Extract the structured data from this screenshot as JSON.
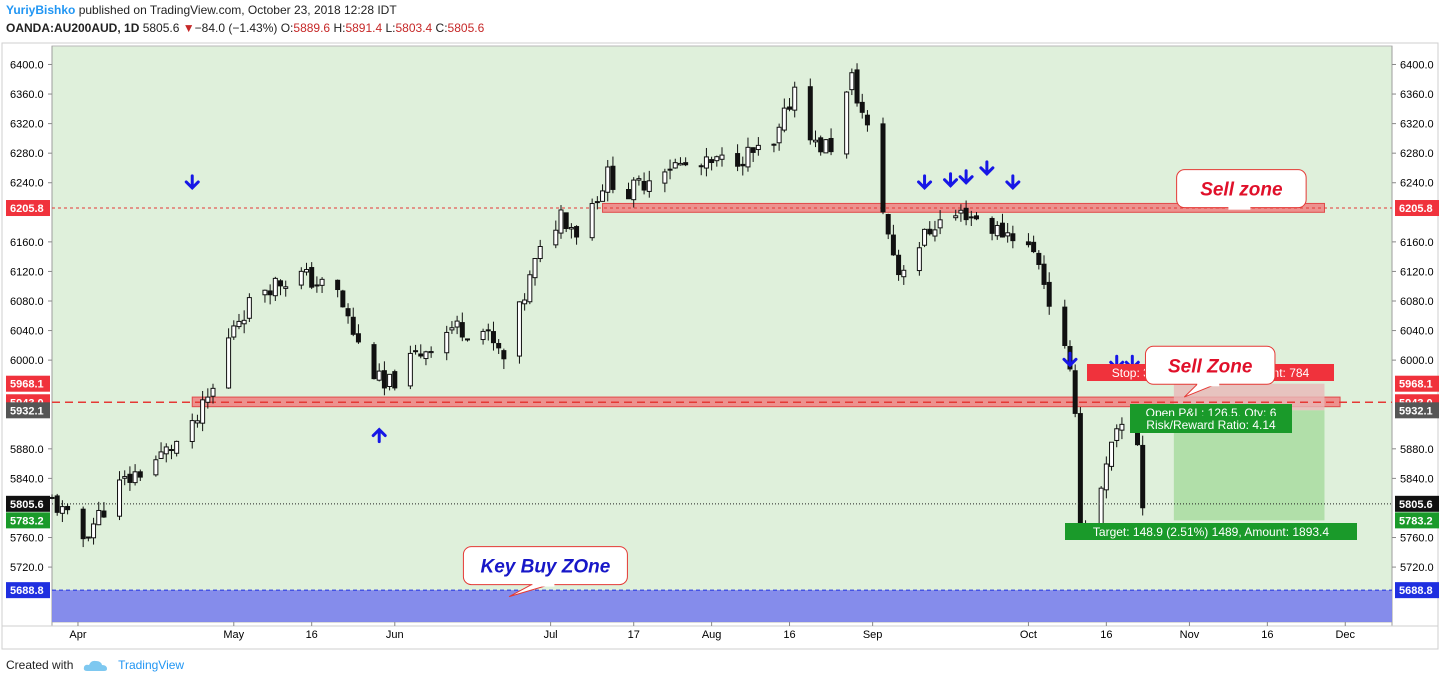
{
  "header": {
    "author": "YuriyBishko",
    "published": "published on TradingView.com, October 23, 2018 12:28 IDT",
    "symbol": "OANDA:AU200AUD, 1D",
    "last": "5805.6",
    "change": "−84.0 (−1.43%)",
    "o_label": "O:",
    "o_value": "5889.6",
    "h_label": "H:",
    "h_value": "5891.4",
    "l_label": "L:",
    "l_value": "5803.4",
    "c_label": "C:",
    "c_value": "5805.6"
  },
  "footer": {
    "created_with": "Created with",
    "brand": "TradingView"
  },
  "colors": {
    "plot_bg": "#dff0db",
    "sell_zone": "#f08080",
    "buy_zone": "#7f86ec",
    "red_label": "#f0323c",
    "green_label": "#1a9a2a",
    "dark_label": "#555555",
    "arrow": "#1717e6",
    "target_box": "#a9dca0"
  },
  "chart_data": {
    "type": "candlestick",
    "y_axis": {
      "range": [
        5645.7,
        6425
      ],
      "ticks": [
        6400,
        6360,
        6320,
        6280,
        6240,
        6160,
        6120,
        6080,
        6040,
        6000,
        5880,
        5840,
        5760,
        5720
      ],
      "tick_labels": [
        "6400.0",
        "6360.0",
        "6320.0",
        "6280.0",
        "6240.0",
        "6160.0",
        "6120.0",
        "6080.0",
        "6040.0",
        "6000.0",
        "5880.0",
        "5840.0",
        "5760.0",
        "5720.0"
      ]
    },
    "x_axis": {
      "start": "2018-03-27",
      "end": "2018-12-10",
      "ticks": [
        {
          "date": "2018-04-01",
          "label": "Apr"
        },
        {
          "date": "2018-05-01",
          "label": "May"
        },
        {
          "date": "2018-05-16",
          "label": "16"
        },
        {
          "date": "2018-06-01",
          "label": "Jun"
        },
        {
          "date": "2018-07-01",
          "label": "Jul"
        },
        {
          "date": "2018-07-17",
          "label": "17"
        },
        {
          "date": "2018-08-01",
          "label": "Aug"
        },
        {
          "date": "2018-08-16",
          "label": "16"
        },
        {
          "date": "2018-09-01",
          "label": "Sep"
        },
        {
          "date": "2018-10-01",
          "label": "Oct"
        },
        {
          "date": "2018-10-16",
          "label": "16"
        },
        {
          "date": "2018-11-01",
          "label": "Nov"
        },
        {
          "date": "2018-11-16",
          "label": "16"
        },
        {
          "date": "2018-12-01",
          "label": "Dec"
        }
      ]
    },
    "price_labels": [
      {
        "value": 6205.8,
        "text": "6205.8",
        "kind": "red"
      },
      {
        "value": 5968.1,
        "text": "5968.1",
        "kind": "red"
      },
      {
        "value": 5943.0,
        "text": "5943.0",
        "kind": "red"
      },
      {
        "value": 5932.1,
        "text": "5932.1",
        "kind": "dark"
      },
      {
        "value": 5805.6,
        "text": "5805.6",
        "kind": "black"
      },
      {
        "value": 5783.2,
        "text": "5783.2",
        "kind": "green"
      },
      {
        "value": 5688.8,
        "text": "5688.8",
        "kind": "blue"
      }
    ],
    "lines": [
      {
        "value": 6205.8,
        "style": "dotted-red"
      },
      {
        "value": 5943.0,
        "style": "dashed-red"
      },
      {
        "value": 5805.6,
        "style": "dotted-black"
      },
      {
        "value": 5688.8,
        "style": "dashed-blue"
      }
    ],
    "zones": [
      {
        "name": "sell-zone-upper",
        "from": "2018-07-11",
        "to": "2018-11-27",
        "low": 6200,
        "high": 6212,
        "kind": "sell"
      },
      {
        "name": "sell-zone-lower",
        "from": "2018-04-23",
        "to": "2018-11-30",
        "low": 5937,
        "high": 5950,
        "kind": "sell"
      },
      {
        "name": "key-buy-zone",
        "from": "2018-03-27",
        "to": "2018-12-10",
        "low": 5645.7,
        "high": 5688.8,
        "kind": "buy"
      }
    ],
    "position": {
      "from": "2018-10-29",
      "to": "2018-11-27",
      "entry": 5932.1,
      "stop": 5968.1,
      "target": 5783.2,
      "stop_text": "Stop: 36.0 (0.61%) 360, Amount: 784",
      "pnl_text": "Open P&L: 126.5, Qty: 6",
      "rr_text": "Risk/Reward Ratio: 4.14",
      "target_text": "Target: 148.9 (2.51%) 1489, Amount: 1893.4"
    },
    "callouts": [
      {
        "text": "Sell zone",
        "x": "2018-11-11",
        "y": 6232,
        "pointer_x": "2018-11-06",
        "pointer_y": 6206
      },
      {
        "text": "Sell Zone",
        "x": "2018-11-05",
        "y": 5993,
        "pointer_x": "2018-10-31",
        "pointer_y": 5950
      },
      {
        "text": "Key Buy ZOne",
        "x": "2018-06-30",
        "y": 5722,
        "pointer_x": "2018-06-23",
        "pointer_y": 5680
      }
    ],
    "arrows": [
      {
        "date": "2018-04-23",
        "value": 6233,
        "dir": "down"
      },
      {
        "date": "2018-05-29",
        "value": 5906,
        "dir": "up"
      },
      {
        "date": "2018-09-11",
        "value": 6233,
        "dir": "down"
      },
      {
        "date": "2018-09-16",
        "value": 6236,
        "dir": "down"
      },
      {
        "date": "2018-09-19",
        "value": 6240,
        "dir": "down"
      },
      {
        "date": "2018-09-23",
        "value": 6252,
        "dir": "down"
      },
      {
        "date": "2018-09-28",
        "value": 6233,
        "dir": "down"
      },
      {
        "date": "2018-10-09",
        "value": 5993,
        "dir": "down"
      },
      {
        "date": "2018-10-18",
        "value": 5989,
        "dir": "down"
      },
      {
        "date": "2018-10-21",
        "value": 5989,
        "dir": "down"
      }
    ],
    "ohlc_anchors": [
      {
        "date": "2018-03-27",
        "close": 5810
      },
      {
        "date": "2018-04-02",
        "close": 5760
      },
      {
        "date": "2018-04-09",
        "close": 5830
      },
      {
        "date": "2018-04-16",
        "close": 5865
      },
      {
        "date": "2018-04-23",
        "close": 5905
      },
      {
        "date": "2018-04-27",
        "close": 5960
      },
      {
        "date": "2018-05-01",
        "close": 6050
      },
      {
        "date": "2018-05-07",
        "close": 6100
      },
      {
        "date": "2018-05-14",
        "close": 6115
      },
      {
        "date": "2018-05-21",
        "close": 6090
      },
      {
        "date": "2018-05-25",
        "close": 6020
      },
      {
        "date": "2018-05-30",
        "close": 5960
      },
      {
        "date": "2018-06-05",
        "close": 6005
      },
      {
        "date": "2018-06-12",
        "close": 6045
      },
      {
        "date": "2018-06-18",
        "close": 6040
      },
      {
        "date": "2018-06-22",
        "close": 6000
      },
      {
        "date": "2018-06-28",
        "close": 6130
      },
      {
        "date": "2018-07-03",
        "close": 6200
      },
      {
        "date": "2018-07-06",
        "close": 6175
      },
      {
        "date": "2018-07-12",
        "close": 6250
      },
      {
        "date": "2018-07-16",
        "close": 6225
      },
      {
        "date": "2018-07-23",
        "close": 6265
      },
      {
        "date": "2018-07-30",
        "close": 6260
      },
      {
        "date": "2018-08-06",
        "close": 6275
      },
      {
        "date": "2018-08-13",
        "close": 6285
      },
      {
        "date": "2018-08-17",
        "close": 6370
      },
      {
        "date": "2018-08-21",
        "close": 6290
      },
      {
        "date": "2018-08-24",
        "close": 6290
      },
      {
        "date": "2018-08-28",
        "close": 6380
      },
      {
        "date": "2018-08-31",
        "close": 6310
      },
      {
        "date": "2018-09-04",
        "close": 6170
      },
      {
        "date": "2018-09-06",
        "close": 6120
      },
      {
        "date": "2018-09-13",
        "close": 6185
      },
      {
        "date": "2018-09-19",
        "close": 6200
      },
      {
        "date": "2018-09-25",
        "close": 6175
      },
      {
        "date": "2018-09-29",
        "close": 6170
      },
      {
        "date": "2018-10-03",
        "close": 6135
      },
      {
        "date": "2018-10-05",
        "close": 6080
      },
      {
        "date": "2018-10-08",
        "close": 6010
      },
      {
        "date": "2018-10-10",
        "close": 5940
      },
      {
        "date": "2018-10-11",
        "close": 5775
      },
      {
        "date": "2018-10-12",
        "close": 5775
      },
      {
        "date": "2018-10-15",
        "close": 5820
      },
      {
        "date": "2018-10-17",
        "close": 5880
      },
      {
        "date": "2018-10-19",
        "close": 5910
      },
      {
        "date": "2018-10-22",
        "close": 5889.6
      },
      {
        "date": "2018-10-23",
        "close": 5805.6
      }
    ]
  }
}
